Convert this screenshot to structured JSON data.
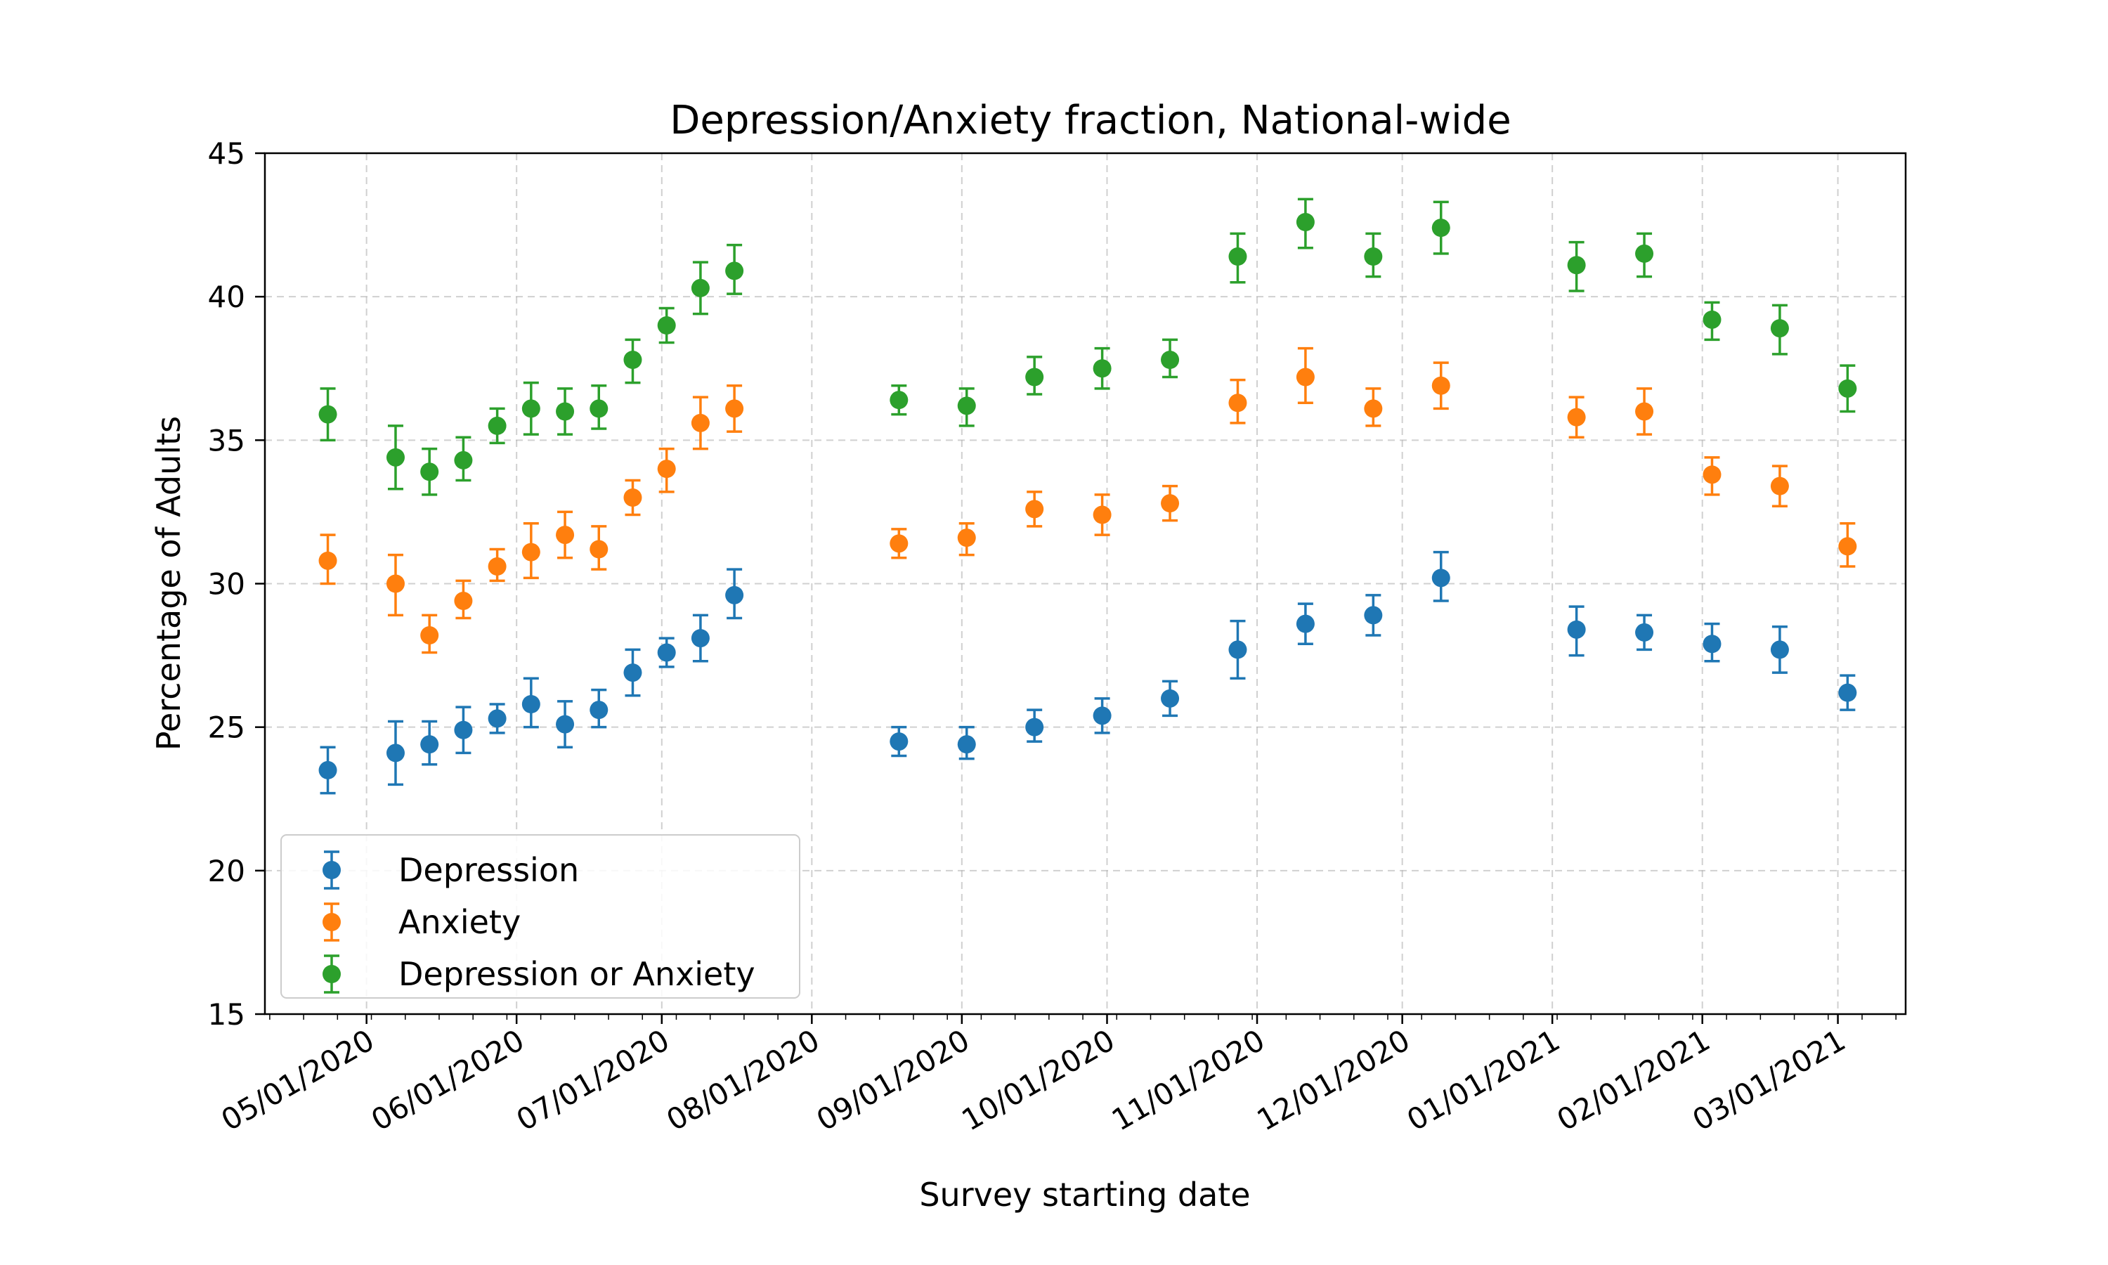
{
  "chart_data": {
    "type": "scatter",
    "title": "Depression/Anxiety fraction, National-wide",
    "xlabel": "Survey starting date",
    "ylabel": "Percentage of Adults",
    "ylim": [
      15,
      45
    ],
    "xlim": [
      "2020-04-10",
      "2021-03-15"
    ],
    "yticks": [
      15,
      20,
      25,
      30,
      35,
      40,
      45
    ],
    "xticks": [
      {
        "date": "2020-05-01",
        "label": "05/01/2020"
      },
      {
        "date": "2020-06-01",
        "label": "06/01/2020"
      },
      {
        "date": "2020-07-01",
        "label": "07/01/2020"
      },
      {
        "date": "2020-08-01",
        "label": "08/01/2020"
      },
      {
        "date": "2020-09-01",
        "label": "09/01/2020"
      },
      {
        "date": "2020-10-01",
        "label": "10/01/2020"
      },
      {
        "date": "2020-11-01",
        "label": "11/01/2020"
      },
      {
        "date": "2020-12-01",
        "label": "12/01/2020"
      },
      {
        "date": "2021-01-01",
        "label": "01/01/2021"
      },
      {
        "date": "2021-02-01",
        "label": "02/01/2021"
      },
      {
        "date": "2021-03-01",
        "label": "03/01/2021"
      }
    ],
    "grid": true,
    "legend_position": "lower-left",
    "x": [
      "2020-04-23",
      "2020-05-07",
      "2020-05-14",
      "2020-05-21",
      "2020-05-28",
      "2020-06-04",
      "2020-06-11",
      "2020-06-18",
      "2020-06-25",
      "2020-07-02",
      "2020-07-09",
      "2020-07-16",
      "2020-08-19",
      "2020-09-02",
      "2020-09-16",
      "2020-09-30",
      "2020-10-14",
      "2020-10-28",
      "2020-11-11",
      "2020-11-25",
      "2020-12-09",
      "2021-01-06",
      "2021-01-20",
      "2021-02-03",
      "2021-02-17",
      "2021-03-03"
    ],
    "series": [
      {
        "name": "Depression",
        "color": "#1f77b4",
        "values": [
          23.5,
          24.1,
          24.4,
          24.9,
          25.3,
          25.8,
          25.1,
          25.6,
          26.9,
          27.6,
          28.1,
          29.6,
          24.5,
          24.4,
          25.0,
          25.4,
          26.0,
          27.7,
          28.6,
          28.9,
          30.2,
          28.4,
          28.3,
          27.9,
          27.7,
          26.2
        ],
        "err_low": [
          0.8,
          1.1,
          0.7,
          0.8,
          0.5,
          0.8,
          0.8,
          0.6,
          0.8,
          0.5,
          0.8,
          0.8,
          0.5,
          0.5,
          0.5,
          0.6,
          0.6,
          1.0,
          0.7,
          0.7,
          0.8,
          0.9,
          0.6,
          0.6,
          0.8,
          0.6
        ],
        "err_high": [
          0.8,
          1.1,
          0.8,
          0.8,
          0.5,
          0.9,
          0.8,
          0.7,
          0.8,
          0.5,
          0.8,
          0.9,
          0.5,
          0.6,
          0.6,
          0.6,
          0.6,
          1.0,
          0.7,
          0.7,
          0.9,
          0.8,
          0.6,
          0.7,
          0.8,
          0.6
        ]
      },
      {
        "name": "Anxiety",
        "color": "#ff7f0e",
        "values": [
          30.8,
          30.0,
          28.2,
          29.4,
          30.6,
          31.1,
          31.7,
          31.2,
          33.0,
          34.0,
          35.6,
          36.1,
          31.4,
          31.6,
          32.6,
          32.4,
          32.8,
          36.3,
          37.2,
          36.1,
          36.9,
          35.8,
          36.0,
          33.8,
          33.4,
          31.3
        ],
        "err_low": [
          0.8,
          1.1,
          0.6,
          0.6,
          0.5,
          0.9,
          0.8,
          0.7,
          0.6,
          0.8,
          0.9,
          0.8,
          0.5,
          0.6,
          0.6,
          0.7,
          0.6,
          0.7,
          0.9,
          0.6,
          0.8,
          0.7,
          0.8,
          0.7,
          0.7,
          0.7
        ],
        "err_high": [
          0.9,
          1.0,
          0.7,
          0.7,
          0.6,
          1.0,
          0.8,
          0.8,
          0.6,
          0.7,
          0.9,
          0.8,
          0.5,
          0.5,
          0.6,
          0.7,
          0.6,
          0.8,
          1.0,
          0.7,
          0.8,
          0.7,
          0.8,
          0.6,
          0.7,
          0.8
        ]
      },
      {
        "name": "Depression or Anxiety",
        "color": "#2ca02c",
        "values": [
          35.9,
          34.4,
          33.9,
          34.3,
          35.5,
          36.1,
          36.0,
          36.1,
          37.8,
          39.0,
          40.3,
          40.9,
          36.4,
          36.2,
          37.2,
          37.5,
          37.8,
          41.4,
          42.6,
          41.4,
          42.4,
          41.1,
          41.5,
          39.2,
          38.9,
          36.8
        ],
        "err_low": [
          0.9,
          1.1,
          0.8,
          0.7,
          0.6,
          0.9,
          0.8,
          0.7,
          0.8,
          0.6,
          0.9,
          0.8,
          0.5,
          0.7,
          0.6,
          0.7,
          0.6,
          0.9,
          0.9,
          0.7,
          0.9,
          0.9,
          0.8,
          0.7,
          0.9,
          0.8
        ],
        "err_high": [
          0.9,
          1.1,
          0.8,
          0.8,
          0.6,
          0.9,
          0.8,
          0.8,
          0.7,
          0.6,
          0.9,
          0.9,
          0.5,
          0.6,
          0.7,
          0.7,
          0.7,
          0.8,
          0.8,
          0.8,
          0.9,
          0.8,
          0.7,
          0.6,
          0.8,
          0.8
        ]
      }
    ]
  }
}
